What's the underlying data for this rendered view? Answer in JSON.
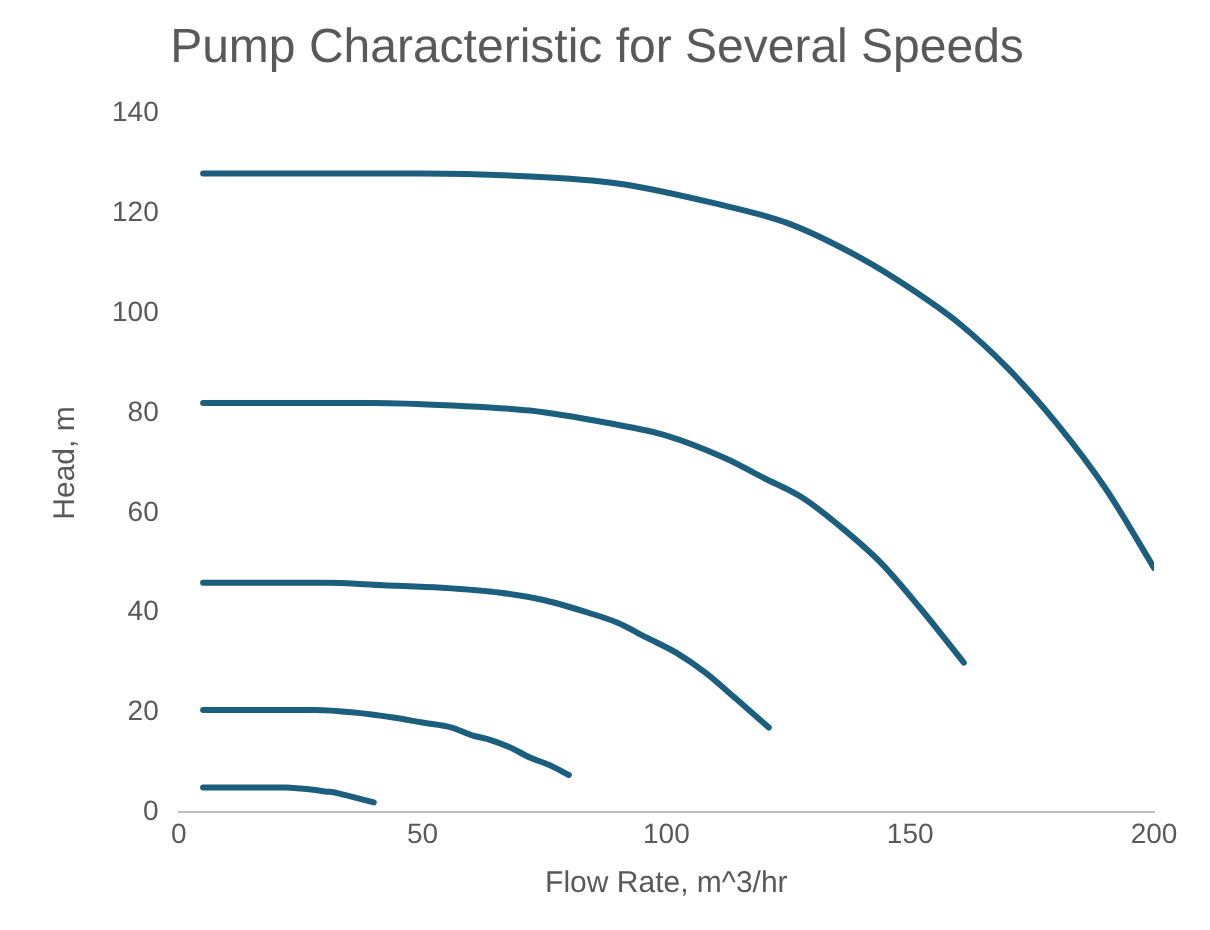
{
  "chart_data": {
    "type": "line",
    "title": "Pump Characteristic for Several Speeds",
    "xlabel": "Flow Rate, m^3/hr",
    "ylabel": "Head, m",
    "xlim": [
      0,
      200
    ],
    "xticks": [
      0,
      50,
      100,
      150,
      200
    ],
    "ylim": [
      0,
      140
    ],
    "yticks": [
      0,
      20,
      40,
      60,
      80,
      100,
      120,
      140
    ],
    "grid": false,
    "legend": false,
    "marker": "none",
    "line_style": "solid",
    "series": [
      {
        "color": "#1b5e7e",
        "x": [
          5,
          25,
          50,
          70,
          90,
          110,
          125,
          140,
          150,
          160,
          170,
          180,
          190,
          200
        ],
        "values": [
          128,
          128,
          128,
          127.5,
          126,
          122,
          118,
          111,
          105,
          98,
          89,
          78,
          65,
          49
        ]
      },
      {
        "color": "#1b5e7e",
        "x": [
          5,
          40,
          56,
          72,
          88,
          100,
          112,
          120,
          128,
          136,
          144,
          152,
          161
        ],
        "values": [
          82,
          82,
          81.5,
          80.5,
          78,
          75.5,
          71,
          67,
          63,
          57,
          50,
          41,
          30
        ]
      },
      {
        "color": "#1b5e7e",
        "x": [
          5,
          30,
          42,
          54,
          66,
          75,
          84,
          90,
          96,
          102,
          108,
          114,
          121
        ],
        "values": [
          46,
          46,
          45.5,
          45,
          44,
          42.5,
          40,
          38,
          35,
          32,
          28,
          23,
          17
        ]
      },
      {
        "color": "#1b5e7e",
        "x": [
          5,
          28,
          36,
          44,
          50,
          56,
          60,
          64,
          68,
          72,
          76,
          80
        ],
        "values": [
          20.5,
          20.5,
          20,
          19,
          18,
          17,
          15.5,
          14.5,
          13,
          11,
          9.5,
          7.5
        ]
      },
      {
        "color": "#1b5e7e",
        "x": [
          5,
          22,
          25,
          28,
          30,
          32,
          34,
          36,
          38,
          40
        ],
        "values": [
          5,
          5,
          4.8,
          4.5,
          4.2,
          4,
          3.5,
          3,
          2.5,
          2
        ]
      }
    ]
  }
}
